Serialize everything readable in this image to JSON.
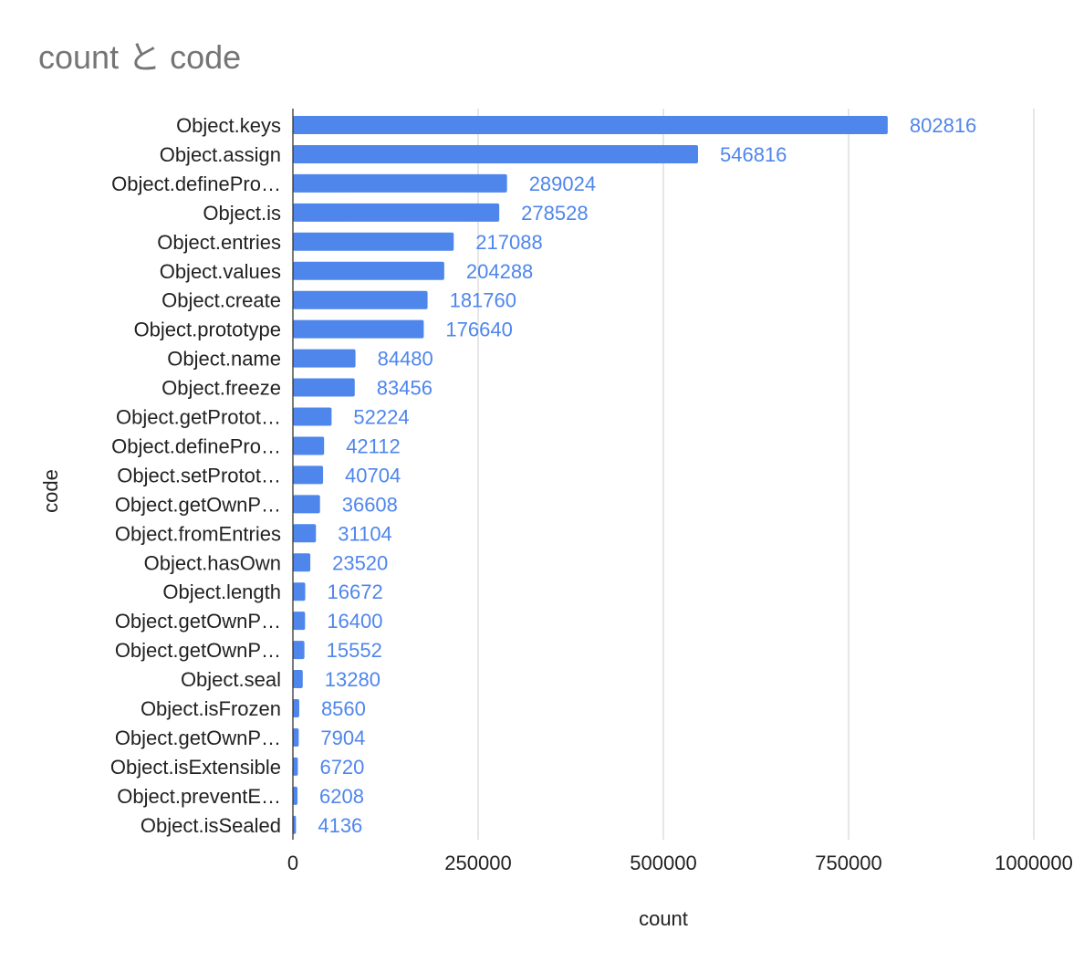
{
  "chart_data": {
    "type": "bar",
    "orientation": "horizontal",
    "title": "count と code",
    "xlabel": "count",
    "ylabel": "code",
    "xlim": [
      0,
      1000000
    ],
    "x_ticks": [
      "0",
      "250000",
      "500000",
      "750000",
      "1000000"
    ],
    "x_tick_values": [
      0,
      250000,
      500000,
      750000,
      1000000
    ],
    "grid": true,
    "legend": "none",
    "bar_color": "#4f86ec",
    "label_color": "#4f86ec",
    "gridline_color": "#cccccc",
    "title_color": "#757575",
    "categories": [
      "Object.keys",
      "Object.assign",
      "Object.definePro…",
      "Object.is",
      "Object.entries",
      "Object.values",
      "Object.create",
      "Object.prototype",
      "Object.name",
      "Object.freeze",
      "Object.getProtot…",
      "Object.definePro…",
      "Object.setProtot…",
      "Object.getOwnP…",
      "Object.fromEntries",
      "Object.hasOwn",
      "Object.length",
      "Object.getOwnP…",
      "Object.getOwnP…",
      "Object.seal",
      "Object.isFrozen",
      "Object.getOwnP…",
      "Object.isExtensible",
      "Object.preventE…",
      "Object.isSealed"
    ],
    "values": [
      802816,
      546816,
      289024,
      278528,
      217088,
      204288,
      181760,
      176640,
      84480,
      83456,
      52224,
      42112,
      40704,
      36608,
      31104,
      23520,
      16672,
      16400,
      15552,
      13280,
      8560,
      7904,
      6720,
      6208,
      4136
    ],
    "data_labels": [
      "802816",
      "546816",
      "289024",
      "278528",
      "217088",
      "204288",
      "181760",
      "176640",
      "84480",
      "83456",
      "52224",
      "42112",
      "40704",
      "36608",
      "31104",
      "23520",
      "16672",
      "16400",
      "15552",
      "13280",
      "8560",
      "7904",
      "6720",
      "6208",
      "4136"
    ]
  }
}
